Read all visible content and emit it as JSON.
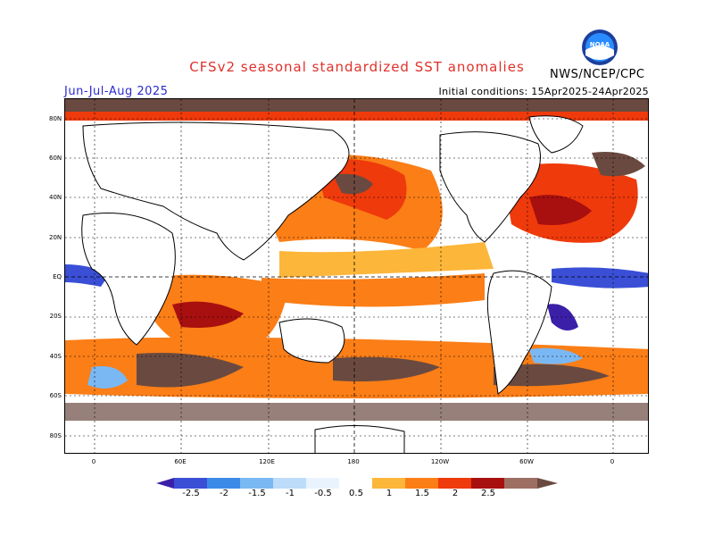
{
  "header": {
    "title": "CFSv2 seasonal standardized SST anomalies",
    "season": "Jun-Jul-Aug 2025",
    "initial_conditions": "Initial conditions: 15Apr2025-24Apr2025",
    "agency": "NWS/NCEP/CPC",
    "logo_text": "NOAA"
  },
  "map": {
    "lat_labels": [
      "80N",
      "60N",
      "40N",
      "20N",
      "EQ",
      "20S",
      "40S",
      "60S",
      "80S"
    ],
    "lon_labels": [
      "0",
      "60E",
      "120E",
      "180",
      "120W",
      "60W",
      "0"
    ]
  },
  "legend": {
    "labels": [
      "-2.5",
      "-2",
      "-1.5",
      "-1",
      "-0.5",
      "0.5",
      "1",
      "1.5",
      "2",
      "2.5"
    ],
    "colors": [
      "#3b1fa8",
      "#3a4fd6",
      "#3c8ae8",
      "#7ab8f4",
      "#bcdcf9",
      "#ffffff",
      "#fcb63a",
      "#fb7e17",
      "#ef3a0c",
      "#a80f0f",
      "#9d6e62",
      "#6a4a40"
    ]
  }
}
